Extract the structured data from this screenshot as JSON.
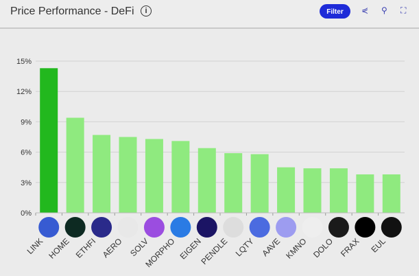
{
  "header": {
    "title": "Price Performance - DeFi",
    "filter_label": "Filter"
  },
  "icons": {
    "info": "info-icon",
    "share": "share-icon",
    "search": "search-icon",
    "fullscreen": "fullscreen-icon"
  },
  "colors": {
    "top_bar": "#22b81e",
    "bar": "#8fea7f",
    "accent": "#1e2bd8"
  },
  "chart_data": {
    "type": "bar",
    "categories": [
      "LINK",
      "HOME",
      "ETHFI",
      "AERO",
      "SOLV",
      "MORPHO",
      "EIGEN",
      "PENDLE",
      "LQTY",
      "AAVE",
      "KMNO",
      "DOLO",
      "FRAX",
      "EUL"
    ],
    "values": [
      14.3,
      9.4,
      7.7,
      7.5,
      7.3,
      7.1,
      6.4,
      5.9,
      5.8,
      4.5,
      4.4,
      4.4,
      3.8,
      3.8
    ],
    "yticks": [
      "0%",
      "3%",
      "6%",
      "9%",
      "12%",
      "15%"
    ],
    "ylim": [
      0,
      15
    ],
    "grid": true,
    "icon_colors": [
      "#375bd2",
      "#0d2a22",
      "#2a2a8a",
      "#e8e8e8",
      "#9b4de0",
      "#2a7be4",
      "#1b1464",
      "#dddddd",
      "#4b6be0",
      "#9d9cf0",
      "#eeeeee",
      "#1a1a1a",
      "#000000",
      "#111111"
    ]
  }
}
